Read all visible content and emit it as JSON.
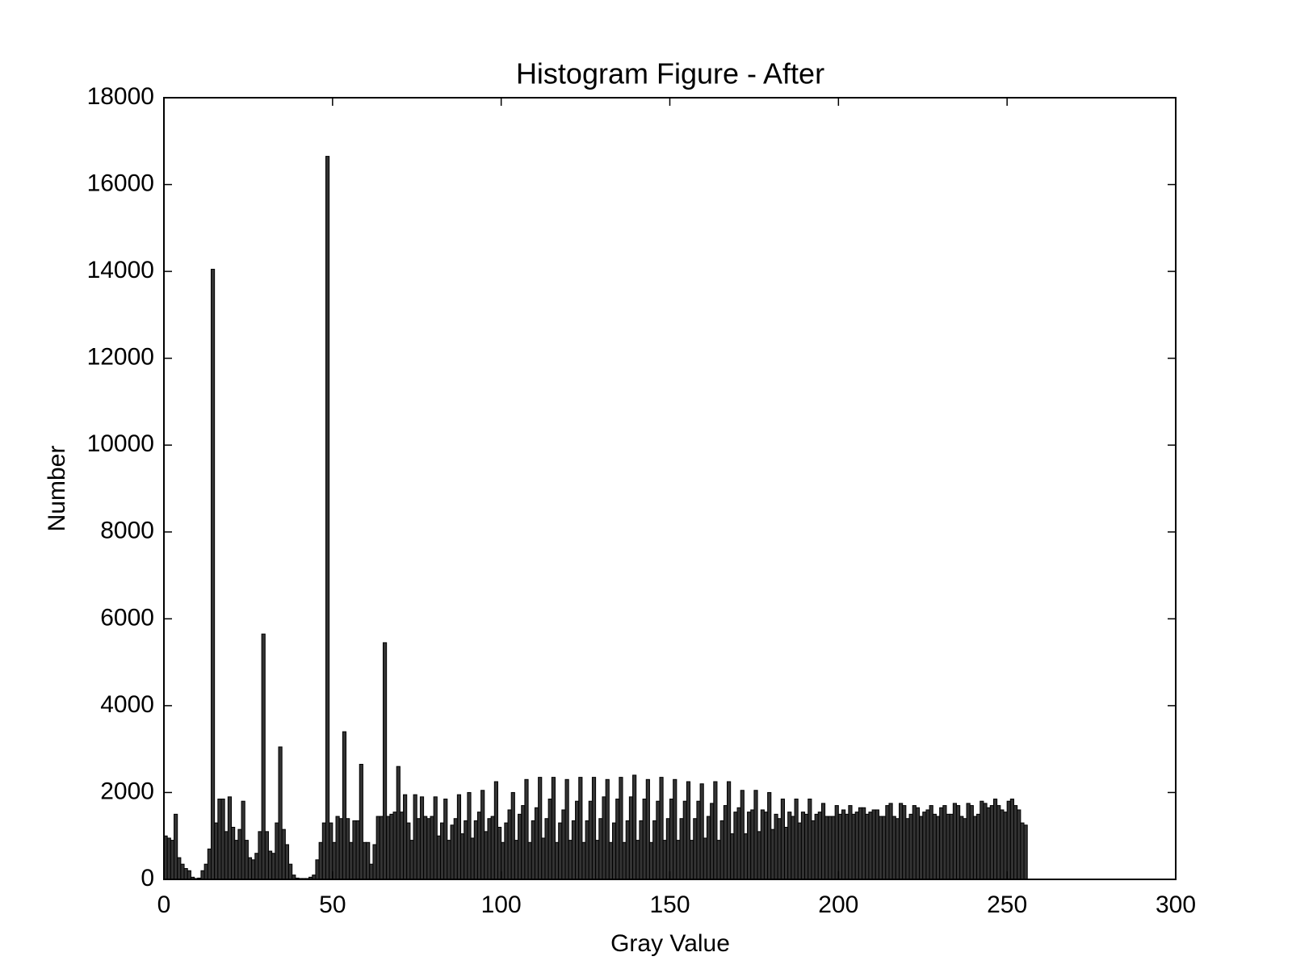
{
  "chart_data": {
    "type": "histogram",
    "title": "Histogram Figure - After",
    "xlabel": "Gray Value",
    "ylabel": "Number",
    "bins": [
      0,
      1,
      2,
      3,
      4,
      5,
      6,
      7,
      8,
      9,
      10,
      11,
      12,
      13,
      14,
      15,
      16,
      17,
      18,
      19,
      20,
      21,
      22,
      23,
      24,
      25,
      26,
      27,
      28,
      29,
      30,
      31,
      32,
      33,
      34,
      35,
      36,
      37,
      38,
      39,
      40,
      41,
      42,
      43,
      44,
      45,
      46,
      47,
      48,
      49,
      50,
      51,
      52,
      53,
      54,
      55,
      56,
      57,
      58,
      59,
      60,
      61,
      62,
      63,
      64,
      65,
      66,
      67,
      68,
      69,
      70,
      71,
      72,
      73,
      74,
      75,
      76,
      77,
      78,
      79,
      80,
      81,
      82,
      83,
      84,
      85,
      86,
      87,
      88,
      89,
      90,
      91,
      92,
      93,
      94,
      95,
      96,
      97,
      98,
      99,
      100,
      101,
      102,
      103,
      104,
      105,
      106,
      107,
      108,
      109,
      110,
      111,
      112,
      113,
      114,
      115,
      116,
      117,
      118,
      119,
      120,
      121,
      122,
      123,
      124,
      125,
      126,
      127,
      128,
      129,
      130,
      131,
      132,
      133,
      134,
      135,
      136,
      137,
      138,
      139,
      140,
      141,
      142,
      143,
      144,
      145,
      146,
      147,
      148,
      149,
      150,
      151,
      152,
      153,
      154,
      155,
      156,
      157,
      158,
      159,
      160,
      161,
      162,
      163,
      164,
      165,
      166,
      167,
      168,
      169,
      170,
      171,
      172,
      173,
      174,
      175,
      176,
      177,
      178,
      179,
      180,
      181,
      182,
      183,
      184,
      185,
      186,
      187,
      188,
      189,
      190,
      191,
      192,
      193,
      194,
      195,
      196,
      197,
      198,
      199,
      200,
      201,
      202,
      203,
      204,
      205,
      206,
      207,
      208,
      209,
      210,
      211,
      212,
      213,
      214,
      215,
      216,
      217,
      218,
      219,
      220,
      221,
      222,
      223,
      224,
      225,
      226,
      227,
      228,
      229,
      230,
      231,
      232,
      233,
      234,
      235,
      236,
      237,
      238,
      239,
      240,
      241,
      242,
      243,
      244,
      245,
      246,
      247,
      248,
      249,
      250,
      251,
      252,
      253,
      254,
      255,
      256
    ],
    "counts": [
      1000,
      950,
      900,
      1500,
      500,
      350,
      250,
      200,
      50,
      20,
      30,
      200,
      350,
      700,
      14050,
      1300,
      1850,
      1850,
      1100,
      1900,
      1200,
      900,
      1150,
      1800,
      900,
      500,
      450,
      600,
      1100,
      5650,
      1100,
      650,
      600,
      1300,
      3050,
      1150,
      800,
      350,
      100,
      30,
      20,
      20,
      20,
      50,
      100,
      450,
      850,
      1300,
      16650,
      1300,
      850,
      1450,
      1400,
      3400,
      1400,
      850,
      1350,
      1350,
      2650,
      850,
      850,
      350,
      800,
      1450,
      1450,
      5450,
      1450,
      1500,
      1550,
      2600,
      1550,
      1950,
      1300,
      900,
      1950,
      1400,
      1900,
      1450,
      1400,
      1450,
      1900,
      1000,
      1300,
      1850,
      900,
      1250,
      1400,
      1950,
      1050,
      1350,
      2000,
      950,
      1350,
      1550,
      2050,
      1100,
      1400,
      1450,
      2250,
      1200,
      850,
      1300,
      1600,
      2000,
      900,
      1500,
      1700,
      2300,
      850,
      1350,
      1650,
      2350,
      950,
      1400,
      1850,
      2350,
      850,
      1300,
      1600,
      2300,
      900,
      1350,
      1800,
      2350,
      850,
      1350,
      1800,
      2350,
      900,
      1400,
      1900,
      2300,
      850,
      1300,
      1850,
      2350,
      850,
      1350,
      1900,
      2400,
      900,
      1350,
      1850,
      2300,
      850,
      1350,
      1800,
      2350,
      900,
      1400,
      1850,
      2300,
      900,
      1400,
      1800,
      2250,
      900,
      1400,
      1800,
      2200,
      950,
      1450,
      1750,
      2250,
      900,
      1350,
      1700,
      2250,
      1050,
      1550,
      1650,
      2050,
      1050,
      1550,
      1600,
      2050,
      1100,
      1600,
      1550,
      2000,
      1150,
      1500,
      1400,
      1850,
      1200,
      1550,
      1450,
      1850,
      1300,
      1550,
      1500,
      1850,
      1350,
      1500,
      1550,
      1750,
      1450,
      1450,
      1450,
      1700,
      1500,
      1600,
      1500,
      1700,
      1500,
      1550,
      1650,
      1650,
      1500,
      1550,
      1600,
      1600,
      1450,
      1450,
      1700,
      1750,
      1450,
      1400,
      1750,
      1700,
      1400,
      1500,
      1700,
      1650,
      1450,
      1550,
      1600,
      1700,
      1500,
      1450,
      1650,
      1700,
      1500,
      1500,
      1750,
      1700,
      1450,
      1400,
      1750,
      1700,
      1450,
      1500,
      1800,
      1750,
      1650,
      1700,
      1850,
      1700,
      1600,
      1550,
      1800,
      1850,
      1700,
      1600,
      1300,
      1250
    ],
    "color": "#333333",
    "xlim": [
      0,
      300
    ],
    "xticks": [
      0,
      50,
      100,
      150,
      200,
      250,
      300
    ],
    "ylim": [
      0,
      18000
    ],
    "yticks": [
      0,
      2000,
      4000,
      6000,
      8000,
      10000,
      12000,
      14000,
      16000,
      18000
    ]
  }
}
